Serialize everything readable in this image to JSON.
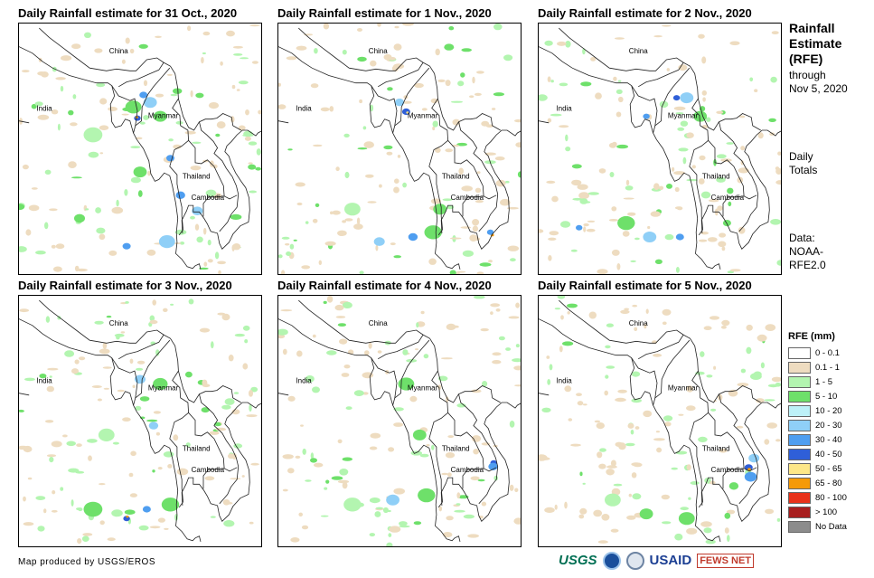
{
  "panels": [
    {
      "title": "Daily Rainfall estimate for 31 Oct., 2020",
      "labels": [
        "China",
        "India",
        "Myanmar",
        "Thailand",
        "Cambodia"
      ]
    },
    {
      "title": "Daily Rainfall estimate for 1 Nov., 2020",
      "labels": [
        "China",
        "India",
        "Myanmar",
        "Thailand",
        "Cambodia"
      ]
    },
    {
      "title": "Daily Rainfall estimate for 2 Nov., 2020",
      "labels": [
        "China",
        "India",
        "Myanmar",
        "Thailand",
        "Cambodia"
      ]
    },
    {
      "title": "Daily Rainfall estimate for 3 Nov., 2020",
      "labels": [
        "China",
        "India",
        "Myanmar",
        "Thailand",
        "Cambodia"
      ]
    },
    {
      "title": "Daily Rainfall estimate for 4 Nov., 2020",
      "labels": [
        "China",
        "India",
        "Myanmar",
        "Thailand",
        "Cambodia"
      ]
    },
    {
      "title": "Daily Rainfall estimate for 5 Nov., 2020",
      "labels": [
        "China",
        "India",
        "Myanmar",
        "Thailand",
        "Cambodia"
      ]
    }
  ],
  "side": {
    "title_lines": [
      "Rainfall",
      "Estimate",
      "(RFE)"
    ],
    "through_lines": [
      "through",
      "Nov 5, 2020"
    ],
    "totals_lines": [
      "Daily",
      "Totals"
    ],
    "data_lines": [
      "Data:",
      "NOAA-",
      "RFE2.0"
    ]
  },
  "legend": {
    "title": "RFE (mm)",
    "entries": [
      {
        "label": "0 - 0.1",
        "color": "#ffffff"
      },
      {
        "label": "0.1 - 1",
        "color": "#eedcc0"
      },
      {
        "label": "1 - 5",
        "color": "#b3f5b0"
      },
      {
        "label": "5 - 10",
        "color": "#6ee06a"
      },
      {
        "label": "10 - 20",
        "color": "#bdf1f8"
      },
      {
        "label": "20 - 30",
        "color": "#8fcff7"
      },
      {
        "label": "30 - 40",
        "color": "#4f9ef0"
      },
      {
        "label": "40 - 50",
        "color": "#2f5fd8"
      },
      {
        "label": "50 - 65",
        "color": "#fde788"
      },
      {
        "label": "65 - 80",
        "color": "#f59a08"
      },
      {
        "label": "80 - 100",
        "color": "#e8321a"
      },
      {
        "label": "> 100",
        "color": "#a81e1e"
      },
      {
        "label": "No Data",
        "color": "#8c8c8c"
      }
    ]
  },
  "credit": "Map produced by USGS/EROS",
  "logos": {
    "usgs": "USGS",
    "usaid": "USAID",
    "fews": "FEWS NET"
  },
  "rain_cells": [
    [
      {
        "lon": 92.6,
        "lat": 22.8,
        "c": "#2f5fd8",
        "r": 0.5
      },
      {
        "lon": 92.5,
        "lat": 22.9,
        "c": "#f59a08",
        "r": 0.22
      },
      {
        "lon": 93.5,
        "lat": 25.3,
        "c": "#4f9ef0",
        "r": 0.6
      },
      {
        "lon": 92.0,
        "lat": 24.0,
        "c": "#6ee06a",
        "r": 1.2
      },
      {
        "lon": 94.5,
        "lat": 24.5,
        "c": "#8fcff7",
        "r": 1.0
      },
      {
        "lon": 96.0,
        "lat": 23.0,
        "c": "#6ee06a",
        "r": 1.0
      },
      {
        "lon": 97.5,
        "lat": 18.5,
        "c": "#4f9ef0",
        "r": 0.6
      },
      {
        "lon": 99.0,
        "lat": 14.5,
        "c": "#4f9ef0",
        "r": 0.7
      },
      {
        "lon": 101.5,
        "lat": 12.8,
        "c": "#8fcff7",
        "r": 0.8
      },
      {
        "lon": 93.0,
        "lat": 17.0,
        "c": "#6ee06a",
        "r": 1.0
      },
      {
        "lon": 91.0,
        "lat": 9.0,
        "c": "#4f9ef0",
        "r": 0.6
      },
      {
        "lon": 97.0,
        "lat": 9.5,
        "c": "#8fcff7",
        "r": 1.2
      },
      {
        "lon": 84.0,
        "lat": 12.0,
        "c": "#6ee06a",
        "r": 0.8
      },
      {
        "lon": 86.0,
        "lat": 21.0,
        "c": "#b3f5b0",
        "r": 1.4
      }
    ],
    [
      {
        "lon": 94.0,
        "lat": 23.5,
        "c": "#2f5fd8",
        "r": 0.6
      },
      {
        "lon": 94.2,
        "lat": 23.4,
        "c": "#fde788",
        "r": 0.2
      },
      {
        "lon": 93.0,
        "lat": 24.5,
        "c": "#8fcff7",
        "r": 0.7
      },
      {
        "lon": 99.0,
        "lat": 13.0,
        "c": "#6ee06a",
        "r": 1.0
      },
      {
        "lon": 95.0,
        "lat": 10.0,
        "c": "#4f9ef0",
        "r": 0.7
      },
      {
        "lon": 90.0,
        "lat": 9.5,
        "c": "#8fcff7",
        "r": 0.8
      },
      {
        "lon": 106.8,
        "lat": 10.2,
        "c": "#f59a08",
        "r": 0.25
      },
      {
        "lon": 106.5,
        "lat": 10.5,
        "c": "#4f9ef0",
        "r": 0.5
      },
      {
        "lon": 98.0,
        "lat": 10.5,
        "c": "#6ee06a",
        "r": 1.3
      },
      {
        "lon": 86.0,
        "lat": 13.0,
        "c": "#b3f5b0",
        "r": 1.2
      }
    ],
    [
      {
        "lon": 95.5,
        "lat": 25.0,
        "c": "#2f5fd8",
        "r": 0.5
      },
      {
        "lon": 91.0,
        "lat": 23.0,
        "c": "#4f9ef0",
        "r": 0.5
      },
      {
        "lon": 97.0,
        "lat": 25.0,
        "c": "#8fcff7",
        "r": 1.0
      },
      {
        "lon": 99.0,
        "lat": 23.0,
        "c": "#6ee06a",
        "r": 1.0
      },
      {
        "lon": 88.0,
        "lat": 11.5,
        "c": "#6ee06a",
        "r": 1.3
      },
      {
        "lon": 91.5,
        "lat": 10.0,
        "c": "#8fcff7",
        "r": 1.0
      },
      {
        "lon": 96.0,
        "lat": 10.0,
        "c": "#4f9ef0",
        "r": 0.6
      },
      {
        "lon": 81.0,
        "lat": 11.0,
        "c": "#4f9ef0",
        "r": 0.5
      },
      {
        "lon": 103.0,
        "lat": 11.5,
        "c": "#6ee06a",
        "r": 0.6
      }
    ],
    [
      {
        "lon": 95.0,
        "lat": 19.0,
        "c": "#8fcff7",
        "r": 0.7
      },
      {
        "lon": 96.0,
        "lat": 23.5,
        "c": "#6ee06a",
        "r": 1.1
      },
      {
        "lon": 93.0,
        "lat": 24.0,
        "c": "#8fcff7",
        "r": 0.8
      },
      {
        "lon": 94.0,
        "lat": 10.0,
        "c": "#4f9ef0",
        "r": 0.6
      },
      {
        "lon": 91.0,
        "lat": 9.0,
        "c": "#2f5fd8",
        "r": 0.5
      },
      {
        "lon": 91.1,
        "lat": 9.2,
        "c": "#f59a08",
        "r": 0.2
      },
      {
        "lon": 86.0,
        "lat": 10.0,
        "c": "#6ee06a",
        "r": 1.4
      },
      {
        "lon": 97.5,
        "lat": 10.5,
        "c": "#6ee06a",
        "r": 1.3
      },
      {
        "lon": 88.0,
        "lat": 18.0,
        "c": "#b3f5b0",
        "r": 1.2
      }
    ],
    [
      {
        "lon": 107.0,
        "lat": 15.0,
        "c": "#2f5fd8",
        "r": 0.5
      },
      {
        "lon": 106.9,
        "lat": 14.6,
        "c": "#4f9ef0",
        "r": 0.7
      },
      {
        "lon": 94.0,
        "lat": 23.5,
        "c": "#6ee06a",
        "r": 1.2
      },
      {
        "lon": 96.0,
        "lat": 18.0,
        "c": "#6ee06a",
        "r": 1.0
      },
      {
        "lon": 92.0,
        "lat": 11.0,
        "c": "#8fcff7",
        "r": 1.0
      },
      {
        "lon": 97.0,
        "lat": 11.5,
        "c": "#6ee06a",
        "r": 1.3
      },
      {
        "lon": 86.0,
        "lat": 10.5,
        "c": "#b3f5b0",
        "r": 1.3
      }
    ],
    [
      {
        "lon": 106.2,
        "lat": 14.5,
        "c": "#2f5fd8",
        "r": 0.6
      },
      {
        "lon": 106.3,
        "lat": 14.3,
        "c": "#f59a08",
        "r": 0.25
      },
      {
        "lon": 106.5,
        "lat": 13.5,
        "c": "#4f9ef0",
        "r": 0.9
      },
      {
        "lon": 107.0,
        "lat": 15.5,
        "c": "#8fcff7",
        "r": 0.8
      },
      {
        "lon": 104.0,
        "lat": 12.5,
        "c": "#6ee06a",
        "r": 0.7
      },
      {
        "lon": 97.0,
        "lat": 9.0,
        "c": "#6ee06a",
        "r": 1.2
      },
      {
        "lon": 91.0,
        "lat": 9.5,
        "c": "#6ee06a",
        "r": 1.0
      },
      {
        "lon": 86.0,
        "lat": 11.0,
        "c": "#b3f5b0",
        "r": 1.2
      }
    ]
  ]
}
